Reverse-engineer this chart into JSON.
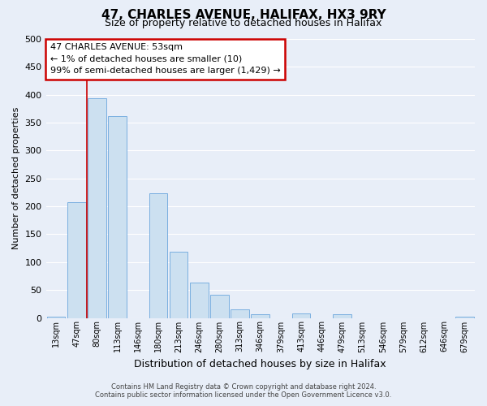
{
  "title": "47, CHARLES AVENUE, HALIFAX, HX3 9RY",
  "subtitle": "Size of property relative to detached houses in Halifax",
  "xlabel": "Distribution of detached houses by size in Halifax",
  "ylabel": "Number of detached properties",
  "bar_labels": [
    "13sqm",
    "47sqm",
    "80sqm",
    "113sqm",
    "146sqm",
    "180sqm",
    "213sqm",
    "246sqm",
    "280sqm",
    "313sqm",
    "346sqm",
    "379sqm",
    "413sqm",
    "446sqm",
    "479sqm",
    "513sqm",
    "546sqm",
    "579sqm",
    "612sqm",
    "646sqm",
    "679sqm"
  ],
  "bar_values": [
    2,
    207,
    394,
    362,
    0,
    224,
    119,
    63,
    41,
    16,
    6,
    0,
    8,
    0,
    7,
    0,
    0,
    0,
    0,
    0,
    2
  ],
  "bar_color": "#cce0f0",
  "bar_edge_color": "#7aafe0",
  "vline_x_idx": 1.5,
  "vline_color": "#cc0000",
  "ylim": [
    0,
    500
  ],
  "yticks": [
    0,
    50,
    100,
    150,
    200,
    250,
    300,
    350,
    400,
    450,
    500
  ],
  "annotation_title": "47 CHARLES AVENUE: 53sqm",
  "annotation_line1": "← 1% of detached houses are smaller (10)",
  "annotation_line2": "99% of semi-detached houses are larger (1,429) →",
  "annotation_box_color": "#ffffff",
  "annotation_box_edge": "#cc0000",
  "footer_line1": "Contains HM Land Registry data © Crown copyright and database right 2024.",
  "footer_line2": "Contains public sector information licensed under the Open Government Licence v3.0.",
  "bg_color": "#e8eef8",
  "plot_bg_color": "#e8eef8",
  "grid_color": "#ffffff",
  "title_fontsize": 11,
  "subtitle_fontsize": 9,
  "ylabel_fontsize": 8,
  "xlabel_fontsize": 9
}
